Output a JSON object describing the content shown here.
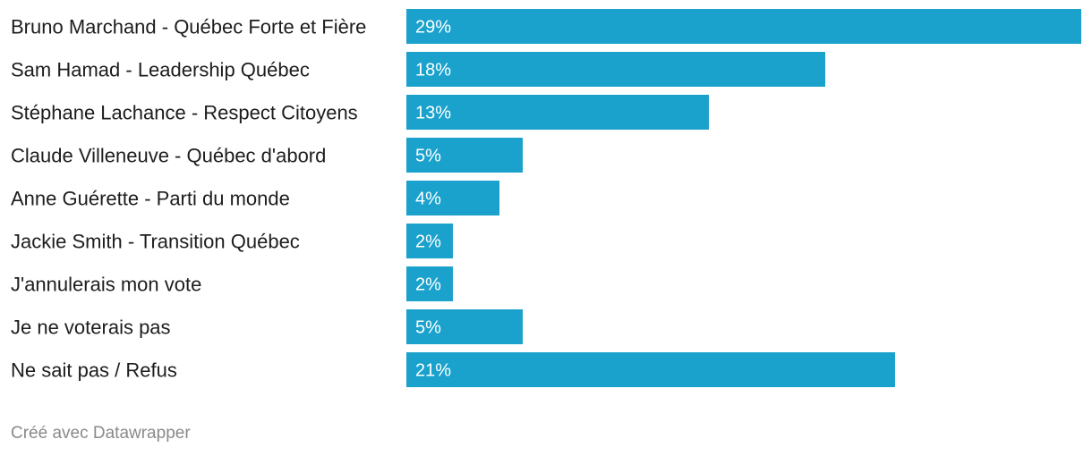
{
  "chart_data": {
    "type": "bar",
    "orientation": "horizontal",
    "categories": [
      "Bruno Marchand - Québec Forte et Fière",
      "Sam Hamad - Leadership Québec",
      "Stéphane Lachance - Respect Citoyens",
      "Claude Villeneuve - Québec d'abord",
      "Anne Guérette - Parti du monde",
      "Jackie Smith - Transition Québec",
      "J'annulerais mon vote",
      "Je ne voterais pas",
      "Ne sait pas / Refus"
    ],
    "values": [
      29,
      18,
      13,
      5,
      4,
      2,
      2,
      5,
      21
    ],
    "value_labels": [
      "29%",
      "18%",
      "13%",
      "5%",
      "4%",
      "2%",
      "2%",
      "5%",
      "21%"
    ],
    "bar_color": "#1aa2cd",
    "xlim": [
      0,
      29
    ],
    "grid": false,
    "legend": "none"
  },
  "footer": {
    "credit": "Créé avec Datawrapper"
  }
}
